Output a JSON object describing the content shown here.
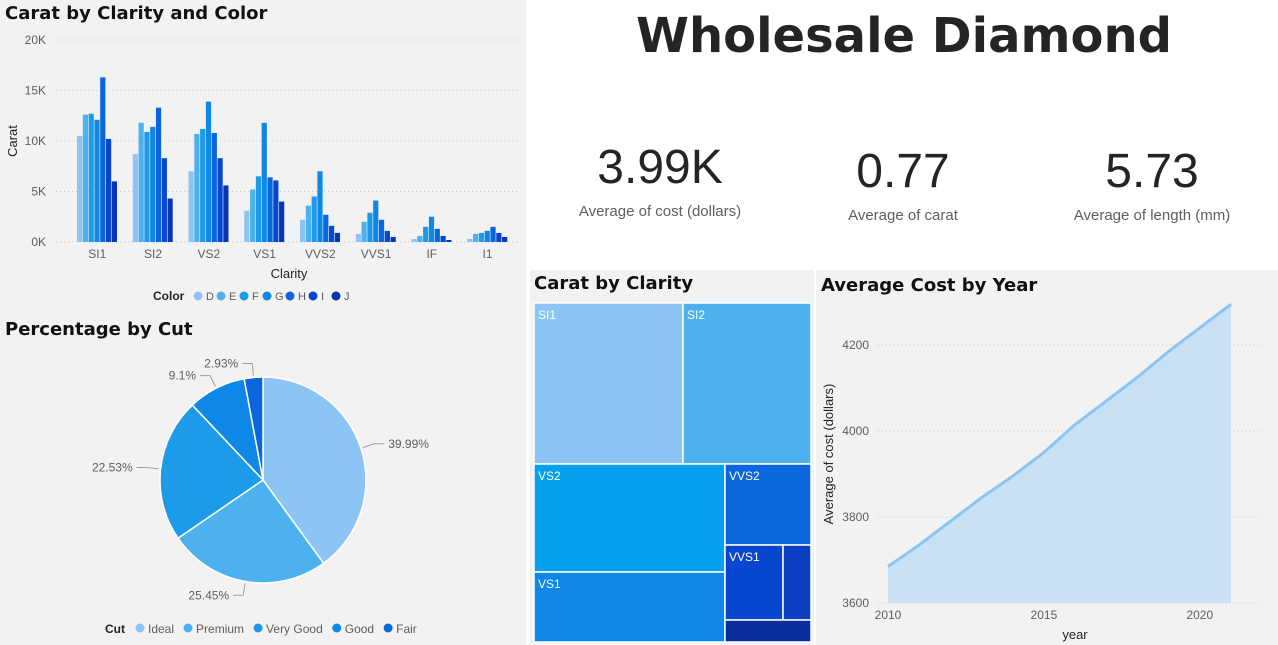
{
  "header": {
    "title": "Wholesale Diamond"
  },
  "kpis": [
    {
      "value": "3.99K",
      "label": "Average of cost (dollars)"
    },
    {
      "value": "0.77",
      "label": "Average of carat"
    },
    {
      "value": "5.73",
      "label": "Average of length (mm)"
    }
  ],
  "colors": {
    "D": "#8cc5f4",
    "E": "#4db0ef",
    "F": "#1d9ae8",
    "G": "#0f87e6",
    "H": "#0a66dd",
    "I": "#0846d0",
    "J": "#0636b3"
  },
  "charts": [
    {
      "type": "bar",
      "title": "Carat by Clarity and Color",
      "xlabel": "Clarity",
      "ylabel": "Carat",
      "ylim": [
        0,
        20000
      ],
      "yticks": [
        "0K",
        "5K",
        "10K",
        "15K",
        "20K"
      ],
      "legend_title": "Color",
      "categories": [
        "SI1",
        "SI2",
        "VS2",
        "VS1",
        "VVS2",
        "VVS1",
        "IF",
        "I1"
      ],
      "series": [
        {
          "name": "D",
          "values": [
            10500,
            8700,
            7000,
            3100,
            2200,
            800,
            300,
            300
          ]
        },
        {
          "name": "E",
          "values": [
            12600,
            11800,
            10700,
            5200,
            3600,
            2000,
            600,
            800
          ]
        },
        {
          "name": "F",
          "values": [
            12700,
            10900,
            11200,
            6500,
            4500,
            2900,
            1500,
            900
          ]
        },
        {
          "name": "G",
          "values": [
            12100,
            11400,
            13900,
            11800,
            7000,
            4100,
            2500,
            1100
          ]
        },
        {
          "name": "H",
          "values": [
            16300,
            13300,
            10800,
            6400,
            2700,
            2200,
            1300,
            1500
          ]
        },
        {
          "name": "I",
          "values": [
            10200,
            8300,
            8300,
            6100,
            1600,
            1100,
            600,
            900
          ]
        },
        {
          "name": "J",
          "values": [
            6000,
            4300,
            5600,
            4000,
            900,
            500,
            200,
            500
          ]
        }
      ]
    },
    {
      "type": "pie",
      "title": "Percentage by Cut",
      "legend_title": "Cut",
      "categories": [
        "Ideal",
        "Premium",
        "Very Good",
        "Good",
        "Fair"
      ],
      "values": [
        39.99,
        25.45,
        22.53,
        9.1,
        2.93
      ],
      "labels": [
        "39.99%",
        "25.45%",
        "22.53%",
        "9.1%",
        "2.93%"
      ],
      "colors": [
        "#8cc5f4",
        "#4db0ef",
        "#1d9ae8",
        "#0f87e6",
        "#0a66dd"
      ]
    },
    {
      "type": "treemap",
      "title": "Carat by Clarity",
      "items": [
        {
          "name": "SI1",
          "color": "#8cc5f4",
          "label": "SI1"
        },
        {
          "name": "SI2",
          "color": "#4db0ef",
          "label": "SI2"
        },
        {
          "name": "VS2",
          "color": "#04a0eb",
          "label": "VS2"
        },
        {
          "name": "VS1",
          "color": "#0f87e6",
          "label": "VS1"
        },
        {
          "name": "VVS2",
          "color": "#0a66dd",
          "label": "VVS2"
        },
        {
          "name": "VVS1",
          "color": "#0846d0",
          "label": "VVS1"
        },
        {
          "name": "IF",
          "color": "#0a40c0",
          "label": ""
        },
        {
          "name": "I1",
          "color": "#0a2f9c",
          "label": ""
        }
      ]
    },
    {
      "type": "area",
      "title": "Average Cost by Year",
      "xlabel": "year",
      "ylabel": "Average of cost (dollars)",
      "xlim": [
        2010,
        2021
      ],
      "ylim": [
        3600,
        4300
      ],
      "xticks": [
        "2010",
        "2015",
        "2020"
      ],
      "yticks": [
        "3600",
        "3800",
        "4000",
        "4200"
      ],
      "x": [
        2010,
        2011,
        2012,
        2013,
        2014,
        2015,
        2016,
        2017,
        2018,
        2019,
        2020,
        2021
      ],
      "values": [
        3685,
        3735,
        3790,
        3845,
        3895,
        3950,
        4015,
        4070,
        4125,
        4185,
        4240,
        4295
      ],
      "line_color": "#8cc5f4",
      "fill_color": "#c9e1f5"
    }
  ]
}
